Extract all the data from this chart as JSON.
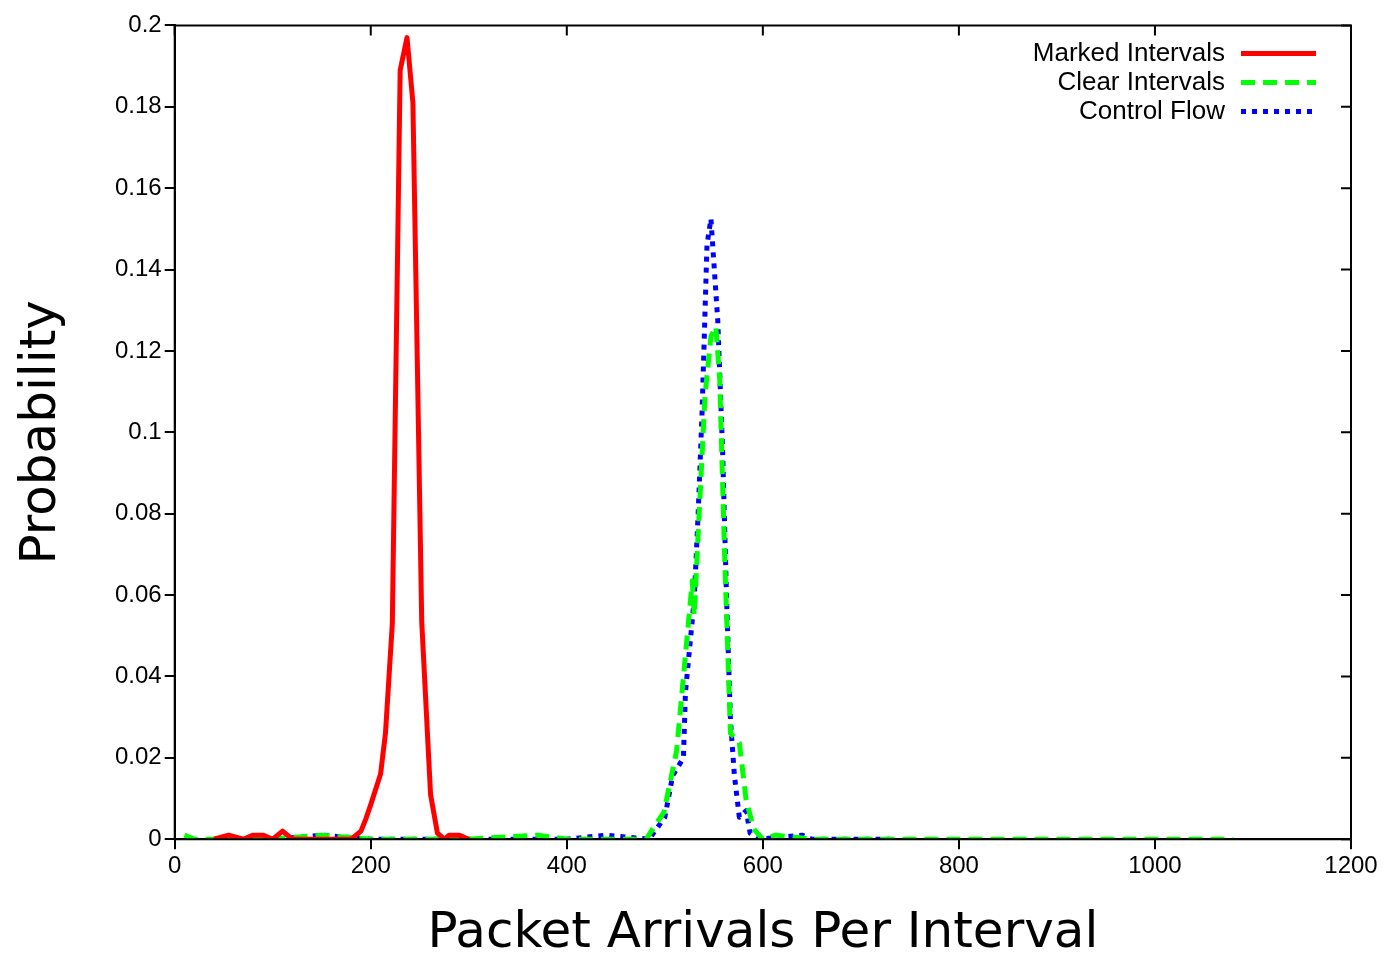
{
  "chart_data": {
    "type": "line",
    "xlabel": "Packet Arrivals Per Interval",
    "ylabel": "Probability",
    "xlim": [
      0,
      1200
    ],
    "xticks": [
      0,
      200,
      400,
      600,
      800,
      1000,
      1200
    ],
    "ylim": [
      0,
      0.2
    ],
    "yticks": [
      0,
      0.02,
      0.04,
      0.06,
      0.08,
      0.1,
      0.12,
      0.14,
      0.16,
      0.18,
      0.2
    ],
    "grid": false,
    "legend": "top right",
    "marker": "none",
    "series": [
      {
        "name": "Marked Intervals",
        "color": "#ff0000",
        "line_style": "solid",
        "x": [
          40,
          55,
          70,
          80,
          90,
          100,
          110,
          120,
          140,
          160,
          180,
          190,
          195,
          200,
          210,
          215,
          222,
          230,
          237,
          243,
          252,
          261,
          268,
          275,
          280,
          290,
          300
        ],
        "values": [
          0,
          0.001,
          0,
          0.001,
          0.001,
          0,
          0.002,
          0,
          0,
          0,
          0,
          0.002,
          0.005,
          0.0085,
          0.016,
          0.026,
          0.053,
          0.189,
          0.197,
          0.181,
          0.0535,
          0.011,
          0.0015,
          0,
          0.001,
          0.001,
          0
        ]
      },
      {
        "name": "Clear Intervals",
        "color": "#00ff00",
        "line_style": "dashed",
        "x": [
          10,
          20,
          100,
          150,
          200,
          300,
          370,
          400,
          450,
          481,
          490,
          499,
          512,
          528,
          530,
          534,
          541,
          547,
          552,
          556,
          561,
          567,
          576,
          583,
          591,
          600,
          613,
          650,
          700,
          800,
          900,
          1000,
          1080
        ],
        "values": [
          0.001,
          0,
          0,
          0.001,
          0,
          0,
          0.001,
          0,
          0,
          0,
          0.0034,
          0.0066,
          0.0217,
          0.0635,
          0.055,
          0.075,
          0.109,
          0.1235,
          0.126,
          0.113,
          0.0696,
          0.026,
          0.0237,
          0.0095,
          0.0024,
          0,
          0.001,
          0,
          0,
          0,
          0,
          0,
          0
        ]
      },
      {
        "name": "Control Flow",
        "color": "#0000ff",
        "line_style": "dotted",
        "x": [
          40,
          100,
          150,
          200,
          300,
          400,
          440,
          484,
          500,
          508,
          519,
          521,
          530,
          534,
          538,
          543,
          547,
          554,
          559,
          563,
          567,
          571,
          576,
          583,
          587,
          597,
          640,
          650,
          700,
          730
        ],
        "values": [
          0,
          0,
          0.001,
          0,
          0,
          0,
          0.001,
          0,
          0.0054,
          0.0156,
          0.02,
          0.036,
          0.059,
          0.08,
          0.105,
          0.146,
          0.1525,
          0.1275,
          0.095,
          0.059,
          0.029,
          0.0156,
          0.0054,
          0.007,
          0.0015,
          0,
          0.001,
          0,
          0,
          0
        ]
      }
    ]
  }
}
